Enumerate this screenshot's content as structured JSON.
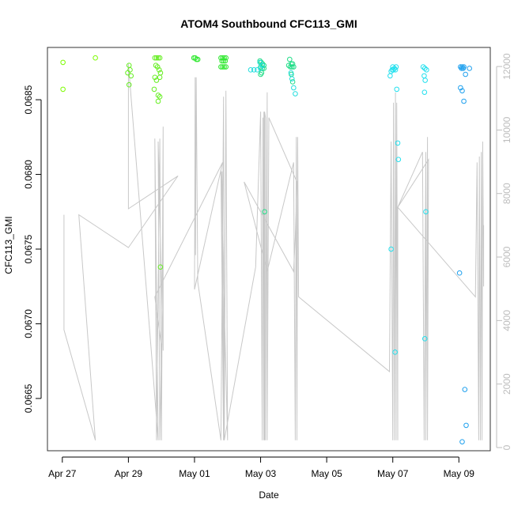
{
  "chart_data": {
    "type": "scatter",
    "title": "ATOM4 Southbound CFC113_GMI",
    "xlabel": "Date",
    "ylabel": "CFC113_GMI",
    "right_axis": {
      "ticks": [
        0,
        2000,
        4000,
        6000,
        8000,
        10000,
        12000
      ],
      "ylim": [
        -100,
        12600
      ],
      "color": "#bdbdbd"
    },
    "x_ticks": [
      {
        "day": 0,
        "label": "Apr 27"
      },
      {
        "day": 2,
        "label": "Apr 29"
      },
      {
        "day": 4,
        "label": "May 01"
      },
      {
        "day": 6,
        "label": "May 03"
      },
      {
        "day": 8,
        "label": "May 05"
      },
      {
        "day": 10,
        "label": "May 07"
      },
      {
        "day": 12,
        "label": "May 09"
      }
    ],
    "xlim": [
      -0.45,
      12.95
    ],
    "ylim": [
      0.06615,
      0.06885
    ],
    "y_ticks": [
      0.0665,
      0.067,
      0.0675,
      0.068,
      0.0685
    ],
    "y_tick_labels": [
      "0.0665",
      "0.0670",
      "0.0675",
      "0.0680",
      "0.0685"
    ],
    "grid": false,
    "series": [
      {
        "color": "#7cfc00",
        "points": [
          [
            0.02,
            0.06875
          ],
          [
            0.02,
            0.06857
          ],
          [
            1.0,
            0.06878
          ]
        ]
      },
      {
        "color": "#66ee22",
        "points": [
          [
            2.02,
            0.06873
          ],
          [
            2.05,
            0.0687
          ],
          [
            1.98,
            0.06868
          ],
          [
            2.08,
            0.06866
          ],
          [
            2.02,
            0.0686
          ],
          [
            2.8,
            0.06878
          ],
          [
            2.85,
            0.06878
          ],
          [
            2.9,
            0.06878
          ],
          [
            2.95,
            0.06878
          ],
          [
            2.83,
            0.06873
          ],
          [
            2.88,
            0.06872
          ],
          [
            2.93,
            0.0687
          ],
          [
            2.97,
            0.06868
          ],
          [
            2.8,
            0.06865
          ],
          [
            2.85,
            0.06863
          ],
          [
            2.95,
            0.06865
          ],
          [
            2.78,
            0.06857
          ],
          [
            2.9,
            0.06853
          ],
          [
            2.95,
            0.06852
          ],
          [
            2.9,
            0.06849
          ],
          [
            2.97,
            0.06738
          ]
        ]
      },
      {
        "color": "#33e833",
        "points": [
          [
            3.98,
            0.06878
          ],
          [
            4.02,
            0.06878
          ],
          [
            4.06,
            0.06877
          ],
          [
            4.1,
            0.06877
          ],
          [
            4.8,
            0.06878
          ],
          [
            4.85,
            0.06878
          ],
          [
            4.9,
            0.06878
          ],
          [
            4.95,
            0.06878
          ],
          [
            4.83,
            0.06876
          ],
          [
            4.88,
            0.06876
          ],
          [
            4.93,
            0.06876
          ],
          [
            4.8,
            0.06872
          ],
          [
            4.85,
            0.06872
          ],
          [
            4.9,
            0.06872
          ],
          [
            4.95,
            0.06872
          ]
        ]
      },
      {
        "color": "#22dd88",
        "points": [
          [
            5.98,
            0.06876
          ],
          [
            6.02,
            0.06875
          ],
          [
            6.06,
            0.06874
          ],
          [
            6.1,
            0.06873
          ],
          [
            6.0,
            0.06872
          ],
          [
            6.05,
            0.06871
          ],
          [
            6.1,
            0.06871
          ],
          [
            6.03,
            0.06868
          ],
          [
            6.0,
            0.06867
          ],
          [
            6.12,
            0.06775
          ],
          [
            6.88,
            0.06877
          ],
          [
            6.93,
            0.06874
          ],
          [
            6.97,
            0.06874
          ],
          [
            6.85,
            0.06873
          ],
          [
            6.9,
            0.06872
          ],
          [
            6.95,
            0.06872
          ],
          [
            7.0,
            0.06872
          ],
          [
            6.93,
            0.06867
          ],
          [
            6.97,
            0.06862
          ]
        ]
      },
      {
        "color": "#22dddd",
        "points": [
          [
            5.98,
            0.06875
          ],
          [
            6.05,
            0.06873
          ],
          [
            6.0,
            0.06871
          ],
          [
            6.92,
            0.06868
          ],
          [
            6.95,
            0.06864
          ],
          [
            7.0,
            0.06858
          ],
          [
            7.05,
            0.06854
          ],
          [
            5.7,
            0.0687
          ],
          [
            5.8,
            0.0687
          ],
          [
            5.9,
            0.0687
          ]
        ]
      },
      {
        "color": "#22e0ee",
        "points": [
          [
            10.0,
            0.06872
          ],
          [
            10.05,
            0.06871
          ],
          [
            10.1,
            0.06872
          ],
          [
            9.98,
            0.0687
          ],
          [
            10.02,
            0.0687
          ],
          [
            10.08,
            0.0687
          ],
          [
            9.95,
            0.06869
          ],
          [
            9.92,
            0.06866
          ],
          [
            10.12,
            0.06857
          ],
          [
            10.15,
            0.06821
          ],
          [
            10.17,
            0.0681
          ],
          [
            9.95,
            0.0675
          ],
          [
            10.07,
            0.06681
          ],
          [
            10.92,
            0.06872
          ],
          [
            10.97,
            0.06871
          ],
          [
            11.02,
            0.0687
          ],
          [
            10.95,
            0.06866
          ],
          [
            10.98,
            0.06863
          ],
          [
            10.96,
            0.06855
          ],
          [
            11.0,
            0.06775
          ],
          [
            10.97,
            0.0669
          ]
        ]
      },
      {
        "color": "#1ea0ee",
        "points": [
          [
            12.05,
            0.06872
          ],
          [
            12.1,
            0.06872
          ],
          [
            12.15,
            0.06872
          ],
          [
            12.08,
            0.06871
          ],
          [
            12.13,
            0.06871
          ],
          [
            12.32,
            0.06871
          ],
          [
            12.05,
            0.06858
          ],
          [
            12.1,
            0.06856
          ],
          [
            12.2,
            0.06867
          ],
          [
            12.15,
            0.06849
          ],
          [
            12.02,
            0.06734
          ],
          [
            12.18,
            0.06656
          ],
          [
            12.22,
            0.06632
          ],
          [
            12.1,
            0.06621
          ]
        ]
      }
    ],
    "line_series": {
      "color": "#c8c8c8",
      "points": [
        [
          0.05,
          0.06773
        ],
        [
          0.05,
          0.06696
        ],
        [
          1.0,
          0.06622
        ],
        [
          0.5,
          0.06773
        ],
        [
          2.0,
          0.06751
        ],
        [
          3.5,
          0.06799
        ],
        [
          2.0,
          0.06777
        ],
        [
          2.0,
          0.06874
        ],
        [
          2.7,
          0.0668
        ],
        [
          2.9,
          0.06622
        ],
        [
          2.8,
          0.06824
        ],
        [
          2.85,
          0.06622
        ],
        [
          2.95,
          0.06824
        ],
        [
          3.0,
          0.06622
        ],
        [
          3.05,
          0.06832
        ],
        [
          3.05,
          0.06682
        ],
        [
          2.9,
          0.06822
        ],
        [
          2.95,
          0.06622
        ],
        [
          3.0,
          0.06685
        ],
        [
          2.8,
          0.06718
        ],
        [
          4.85,
          0.06808
        ],
        [
          4.0,
          0.06723
        ],
        [
          4.02,
          0.06865
        ],
        [
          4.03,
          0.06746
        ],
        [
          4.05,
          0.06865
        ],
        [
          4.1,
          0.06728
        ],
        [
          4.8,
          0.06622
        ],
        [
          4.88,
          0.06852
        ],
        [
          4.9,
          0.06622
        ],
        [
          4.95,
          0.06856
        ],
        [
          5.0,
          0.06622
        ],
        [
          4.8,
          0.06803
        ],
        [
          4.88,
          0.06622
        ],
        [
          4.83,
          0.06802
        ],
        [
          4.9,
          0.06622
        ],
        [
          5.85,
          0.06738
        ],
        [
          6.0,
          0.06842
        ],
        [
          6.05,
          0.06622
        ],
        [
          6.07,
          0.06838
        ],
        [
          6.1,
          0.06622
        ],
        [
          6.1,
          0.06842
        ],
        [
          6.12,
          0.06622
        ],
        [
          6.12,
          0.06842
        ],
        [
          6.15,
          0.06838
        ],
        [
          6.15,
          0.06622
        ],
        [
          6.2,
          0.06855
        ],
        [
          6.2,
          0.06622
        ],
        [
          6.25,
          0.06838
        ],
        [
          7.1,
          0.06795
        ],
        [
          7.05,
          0.06758
        ],
        [
          7.0,
          0.06735
        ],
        [
          5.5,
          0.06795
        ],
        [
          6.2,
          0.06735
        ],
        [
          7.0,
          0.06808
        ],
        [
          7.05,
          0.06622
        ],
        [
          7.08,
          0.06825
        ],
        [
          7.1,
          0.06622
        ],
        [
          7.12,
          0.06825
        ],
        [
          7.15,
          0.06718
        ],
        [
          9.9,
          0.06668
        ],
        [
          9.95,
          0.06822
        ],
        [
          10.0,
          0.06622
        ],
        [
          10.02,
          0.06848
        ],
        [
          10.05,
          0.06622
        ],
        [
          10.08,
          0.06855
        ],
        [
          10.1,
          0.06622
        ],
        [
          10.12,
          0.06848
        ],
        [
          10.15,
          0.06622
        ],
        [
          10.15,
          0.06778
        ],
        [
          10.9,
          0.06815
        ],
        [
          10.95,
          0.06622
        ],
        [
          11.0,
          0.06815
        ],
        [
          11.0,
          0.06622
        ],
        [
          11.05,
          0.06825
        ],
        [
          11.05,
          0.06622
        ],
        [
          11.08,
          0.0681
        ],
        [
          10.15,
          0.06778
        ],
        [
          12.5,
          0.06718
        ],
        [
          12.55,
          0.06808
        ],
        [
          12.6,
          0.06622
        ],
        [
          12.62,
          0.06812
        ],
        [
          12.65,
          0.06622
        ],
        [
          12.68,
          0.06815
        ],
        [
          12.7,
          0.06622
        ],
        [
          12.72,
          0.06822
        ],
        [
          12.75,
          0.06725
        ],
        [
          12.75,
          0.06766
        ]
      ]
    }
  }
}
